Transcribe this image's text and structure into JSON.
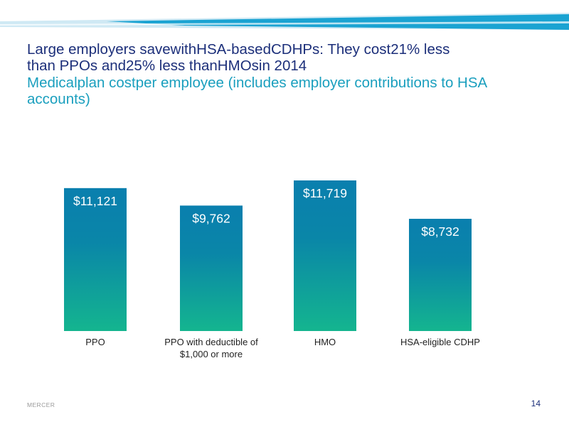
{
  "slide": {
    "title_lines": [
      "Large employers savewithHSA-basedCDHPs:  They cost21% less",
      "than  PPOs and25% less thanHMOsin  2014"
    ],
    "subtitle": "Medicalplan  costper employee  (includes  employer contributions  to HSA accounts)",
    "footer_brand": "MERCER",
    "page_number": "14",
    "colors": {
      "title": "#1c2f7a",
      "subtitle": "#1a9fbe",
      "bar_top": "#0a7fae",
      "bar_bottom": "#14b58f",
      "band_light": "#cfe9f4",
      "band_dark": "#1aa3d2"
    }
  },
  "chart_data": {
    "type": "bar",
    "title": "",
    "xlabel": "",
    "ylabel": "",
    "categories": [
      [
        "PPO"
      ],
      [
        "PPO with deductible of",
        "$1,000 or more"
      ],
      [
        "HMO"
      ],
      [
        "HSA-eligible  CDHP"
      ]
    ],
    "values": [
      11121,
      9762,
      11719,
      8732
    ],
    "value_labels": [
      "$11,121",
      "$9,762",
      "$11,719",
      "$8,732"
    ],
    "ylim": [
      0,
      11719
    ],
    "grid": false,
    "legend": "none"
  }
}
